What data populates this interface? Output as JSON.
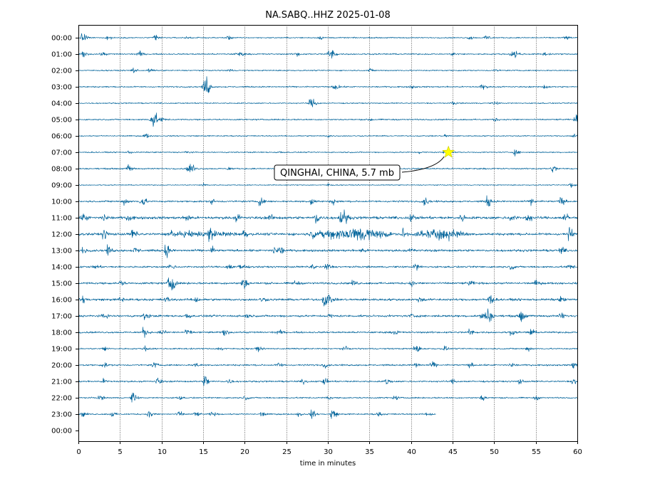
{
  "chart_data": {
    "type": "line",
    "title": "NA.SABQ..HHZ 2025-01-08",
    "xlabel": "time in minutes",
    "ylabel": "",
    "xlim": [
      0,
      60
    ],
    "x_ticks": [
      0,
      5,
      10,
      15,
      20,
      25,
      30,
      35,
      40,
      45,
      50,
      55,
      60
    ],
    "y_tick_labels": [
      "00:00",
      "01:00",
      "02:00",
      "03:00",
      "04:00",
      "05:00",
      "06:00",
      "07:00",
      "08:00",
      "09:00",
      "10:00",
      "11:00",
      "12:00",
      "13:00",
      "14:00",
      "15:00",
      "16:00",
      "17:00",
      "18:00",
      "19:00",
      "20:00",
      "21:00",
      "22:00",
      "23:00",
      "00:00"
    ],
    "grid": "vertical dotted lines at each x tick",
    "trace_color": "#00639a",
    "rows": [
      {
        "hour": "00:00",
        "noise": 0.5,
        "bursts": [
          [
            0.5,
            3.5
          ],
          [
            3.5,
            1.5
          ],
          [
            9.2,
            2.5
          ],
          [
            13,
            1
          ],
          [
            18,
            1.2
          ],
          [
            29,
            1
          ],
          [
            47,
            1.2
          ],
          [
            49,
            2
          ],
          [
            58.5,
            1.5
          ]
        ]
      },
      {
        "hour": "01:00",
        "noise": 0.6,
        "bursts": [
          [
            0.5,
            2
          ],
          [
            2.8,
            1.2
          ],
          [
            7.2,
            2
          ],
          [
            19,
            1
          ],
          [
            19.5,
            1
          ],
          [
            26.2,
            1.5
          ],
          [
            30,
            2
          ],
          [
            30.5,
            2.5
          ],
          [
            45,
            1
          ],
          [
            52,
            1.2
          ],
          [
            52.6,
            2
          ],
          [
            56,
            1
          ]
        ]
      },
      {
        "hour": "02:00",
        "noise": 0.5,
        "bursts": [
          [
            6.5,
            2
          ],
          [
            8.5,
            1
          ],
          [
            18,
            1
          ],
          [
            35,
            1
          ],
          [
            50,
            1
          ]
        ]
      },
      {
        "hour": "03:00",
        "noise": 0.6,
        "bursts": [
          [
            15.3,
            6
          ],
          [
            15.1,
            2.5
          ],
          [
            30.8,
            2.5
          ],
          [
            40,
            1
          ],
          [
            48.5,
            2
          ],
          [
            56,
            1
          ]
        ]
      },
      {
        "hour": "04:00",
        "noise": 0.5,
        "bursts": [
          [
            27.8,
            2.5
          ],
          [
            28.3,
            2
          ],
          [
            45,
            1
          ],
          [
            50,
            1
          ]
        ]
      },
      {
        "hour": "05:00",
        "noise": 0.6,
        "bursts": [
          [
            8.8,
            4
          ],
          [
            9.1,
            3
          ],
          [
            10,
            1
          ],
          [
            35,
            1
          ],
          [
            50,
            1
          ],
          [
            59.8,
            3
          ]
        ]
      },
      {
        "hour": "06:00",
        "noise": 0.5,
        "bursts": [
          [
            8,
            1.5
          ],
          [
            30,
            1
          ],
          [
            44,
            1
          ],
          [
            59.5,
            1.8
          ]
        ]
      },
      {
        "hour": "07:00",
        "noise": 0.5,
        "bursts": [
          [
            6,
            0.8
          ],
          [
            13,
            0.8
          ],
          [
            24,
            0.8
          ],
          [
            41,
            0.8
          ],
          [
            44,
            1
          ],
          [
            52.5,
            1.8
          ]
        ]
      },
      {
        "hour": "08:00",
        "noise": 0.6,
        "bursts": [
          [
            6,
            2.5
          ],
          [
            13.2,
            2.5
          ],
          [
            13.6,
            2
          ],
          [
            18,
            1
          ],
          [
            36.5,
            1
          ],
          [
            57,
            2.5
          ]
        ]
      },
      {
        "hour": "09:00",
        "noise": 0.4,
        "bursts": [
          [
            15,
            1.2
          ],
          [
            30,
            0.8
          ],
          [
            59,
            2
          ]
        ]
      },
      {
        "hour": "10:00",
        "noise": 0.8,
        "bursts": [
          [
            5.5,
            2
          ],
          [
            7.6,
            4
          ],
          [
            16,
            1.5
          ],
          [
            21.8,
            2.5
          ],
          [
            28,
            2.5
          ],
          [
            30.5,
            2
          ],
          [
            41.6,
            2.5
          ],
          [
            49.2,
            4
          ],
          [
            54.5,
            2
          ],
          [
            58,
            3
          ]
        ]
      },
      {
        "hour": "11:00",
        "noise": 1.2,
        "bursts": [
          [
            0.6,
            2.5
          ],
          [
            3,
            2
          ],
          [
            6,
            2
          ],
          [
            13,
            2.5
          ],
          [
            19,
            2
          ],
          [
            23,
            1.5
          ],
          [
            28.5,
            4
          ],
          [
            31.5,
            4
          ],
          [
            32,
            3
          ],
          [
            40,
            2
          ],
          [
            46,
            2
          ],
          [
            52,
            2
          ],
          [
            54,
            3
          ],
          [
            58.5,
            2.5
          ]
        ]
      },
      {
        "hour": "12:00",
        "noise": 1.1,
        "bursts": [
          [
            3,
            3
          ],
          [
            6.5,
            3
          ],
          [
            11,
            2
          ],
          [
            15.7,
            3.5
          ],
          [
            19.8,
            3
          ],
          [
            28,
            2
          ],
          [
            33.5,
            1.5
          ],
          [
            39,
            3
          ],
          [
            59,
            4
          ]
        ],
        "windows": [
          [
            10,
            20,
            1.8
          ],
          [
            28,
            38,
            5.5
          ],
          [
            40,
            47,
            4.5
          ]
        ]
      },
      {
        "hour": "13:00",
        "noise": 1.0,
        "bursts": [
          [
            0.5,
            1.5
          ],
          [
            3.5,
            2.5
          ],
          [
            6.8,
            2
          ],
          [
            10.5,
            4
          ],
          [
            16,
            2
          ],
          [
            23.5,
            2
          ],
          [
            24.2,
            2.5
          ],
          [
            34,
            1.5
          ],
          [
            40,
            1.5
          ],
          [
            58,
            2
          ]
        ]
      },
      {
        "hour": "14:00",
        "noise": 0.8,
        "bursts": [
          [
            2,
            1.5
          ],
          [
            11,
            2
          ],
          [
            18,
            2
          ],
          [
            19.5,
            3.5
          ],
          [
            28,
            2
          ],
          [
            29.8,
            3
          ],
          [
            40.5,
            2.5
          ],
          [
            52,
            1.5
          ],
          [
            59,
            1.5
          ]
        ]
      },
      {
        "hour": "15:00",
        "noise": 0.9,
        "bursts": [
          [
            5,
            1.5
          ],
          [
            10.9,
            4
          ],
          [
            11.2,
            3.5
          ],
          [
            19.8,
            5
          ],
          [
            26,
            1.5
          ],
          [
            33,
            1.5
          ],
          [
            40,
            1.5
          ],
          [
            47,
            1.5
          ],
          [
            55,
            1.5
          ]
        ]
      },
      {
        "hour": "16:00",
        "noise": 1.0,
        "bursts": [
          [
            0.5,
            2
          ],
          [
            5,
            1.5
          ],
          [
            10.5,
            1.5
          ],
          [
            14,
            2
          ],
          [
            22,
            1.5
          ],
          [
            29.5,
            4
          ],
          [
            30,
            3
          ],
          [
            41,
            1.5
          ],
          [
            49.4,
            3.5
          ],
          [
            58,
            1.5
          ]
        ]
      },
      {
        "hour": "17:00",
        "noise": 0.9,
        "bursts": [
          [
            3,
            1.5
          ],
          [
            8,
            2.5
          ],
          [
            13,
            1.5
          ],
          [
            20,
            1.5
          ],
          [
            30,
            1.5
          ],
          [
            40,
            1.5
          ],
          [
            48.5,
            3
          ],
          [
            49.2,
            5
          ],
          [
            53.2,
            4
          ],
          [
            58,
            2
          ]
        ]
      },
      {
        "hour": "18:00",
        "noise": 0.8,
        "bursts": [
          [
            7.8,
            3
          ],
          [
            10,
            1.5
          ],
          [
            13,
            1.5
          ],
          [
            17.5,
            2
          ],
          [
            24,
            1.5
          ],
          [
            38,
            1.5
          ],
          [
            47,
            2
          ],
          [
            52,
            1.5
          ],
          [
            54.3,
            2.5
          ]
        ]
      },
      {
        "hour": "19:00",
        "noise": 0.6,
        "bursts": [
          [
            3,
            1.5
          ],
          [
            8,
            1.5
          ],
          [
            17,
            1.5
          ],
          [
            21.5,
            1.5
          ],
          [
            32,
            1.2
          ],
          [
            40.5,
            3
          ],
          [
            44,
            1.5
          ],
          [
            54,
            1.5
          ]
        ]
      },
      {
        "hour": "20:00",
        "noise": 0.7,
        "bursts": [
          [
            3,
            1.5
          ],
          [
            9,
            2
          ],
          [
            14,
            1.5
          ],
          [
            24,
            1.5
          ],
          [
            29.5,
            1.5
          ],
          [
            40.5,
            2
          ],
          [
            42.5,
            2
          ],
          [
            47,
            1.5
          ],
          [
            52,
            1.5
          ],
          [
            59.5,
            2.5
          ]
        ]
      },
      {
        "hour": "21:00",
        "noise": 0.7,
        "bursts": [
          [
            3,
            1.5
          ],
          [
            9.5,
            2.5
          ],
          [
            15.2,
            4
          ],
          [
            18,
            1.5
          ],
          [
            27,
            1.5
          ],
          [
            29.5,
            2
          ],
          [
            37,
            2
          ],
          [
            45,
            1.5
          ],
          [
            53,
            1.5
          ],
          [
            59.5,
            2
          ]
        ]
      },
      {
        "hour": "22:00",
        "noise": 0.6,
        "bursts": [
          [
            2.5,
            1.5
          ],
          [
            6.5,
            3.5
          ],
          [
            12,
            1.2
          ],
          [
            20,
            1.2
          ],
          [
            30,
            1.2
          ],
          [
            38,
            1.2
          ],
          [
            48.5,
            2
          ],
          [
            55,
            1.2
          ]
        ]
      },
      {
        "hour": "23:00",
        "noise": 0.6,
        "bursts": [
          [
            0.5,
            1.5
          ],
          [
            4,
            1.5
          ],
          [
            8.5,
            2.5
          ],
          [
            12,
            2
          ],
          [
            14,
            1.5
          ],
          [
            16,
            1.5
          ],
          [
            22,
            1.5
          ],
          [
            26.5,
            1.5
          ],
          [
            28,
            2.5
          ],
          [
            30.5,
            4
          ],
          [
            36,
            1.5
          ],
          [
            42,
            1.2
          ]
        ],
        "end": 43
      }
    ],
    "annotation": {
      "text": "QINGHAI, CHINA, 5.7 mb",
      "marker": "star",
      "marker_color": "#ffff00",
      "row": "07:00",
      "x": 44.5
    }
  }
}
